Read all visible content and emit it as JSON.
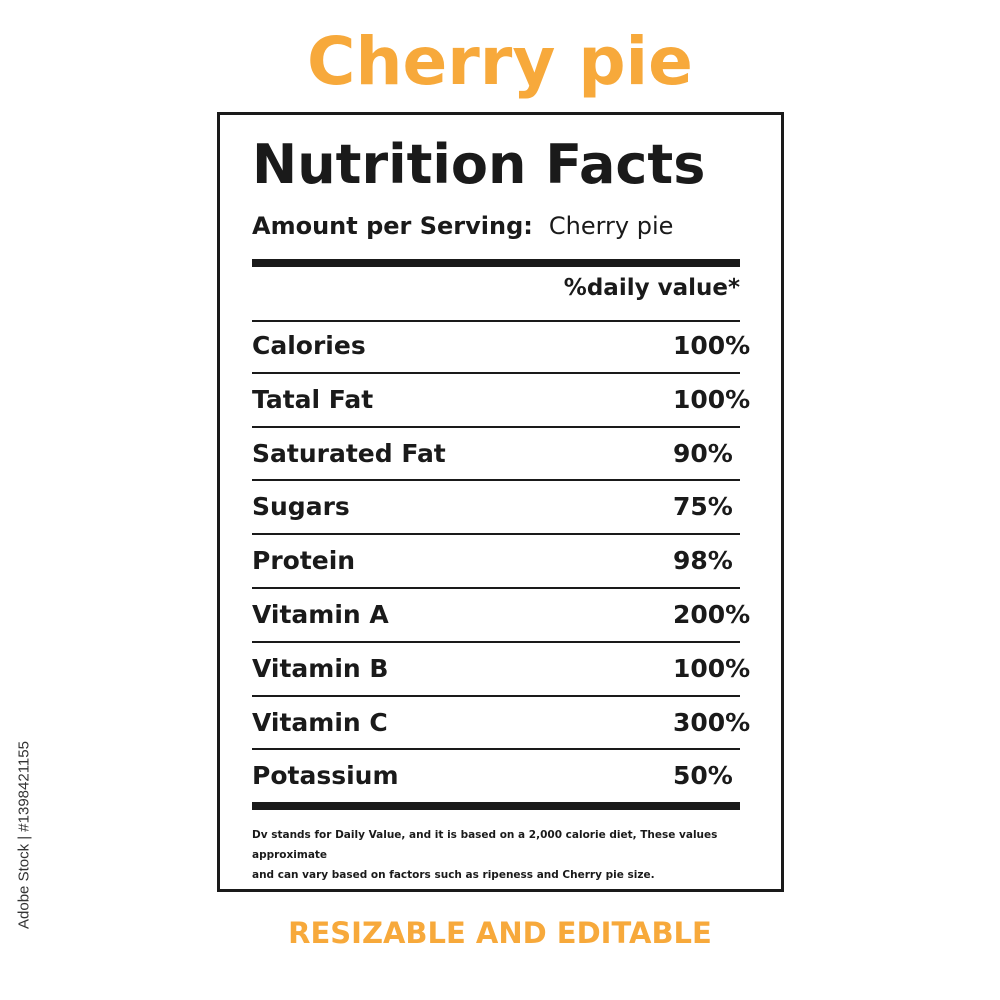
{
  "header": {
    "title": "Cherry pie"
  },
  "label": {
    "title": "Nutrition Facts",
    "serving_label": "Amount per Serving:",
    "serving_value": "Cherry pie",
    "dv_header": "%daily value*",
    "nutrients": [
      {
        "name": "Calories",
        "value": "100%"
      },
      {
        "name": "Tatal Fat",
        "value": "100%"
      },
      {
        "name": "Saturated Fat",
        "value": "90%"
      },
      {
        "name": "Sugars",
        "value": "75%"
      },
      {
        "name": "Protein",
        "value": "98%"
      },
      {
        "name": "Vitamin A",
        "value": "200%"
      },
      {
        "name": "Vitamin B",
        "value": "100%"
      },
      {
        "name": "Vitamin C",
        "value": "300%"
      },
      {
        "name": "Potassium",
        "value": "50%"
      }
    ],
    "footnote_line1": "Dv stands for Daily Value, and it is based on a 2,000 calorie diet, These values approximate",
    "footnote_line2": "and can vary based on factors such as ripeness and Cherry pie size."
  },
  "footer": {
    "caption": "RESIZABLE AND EDITABLE"
  },
  "stock": {
    "id_text": "Adobe Stock | #1398421155"
  },
  "colors": {
    "accent": "#F7A93B",
    "ink": "#1a1a1a",
    "background": "#ffffff"
  }
}
